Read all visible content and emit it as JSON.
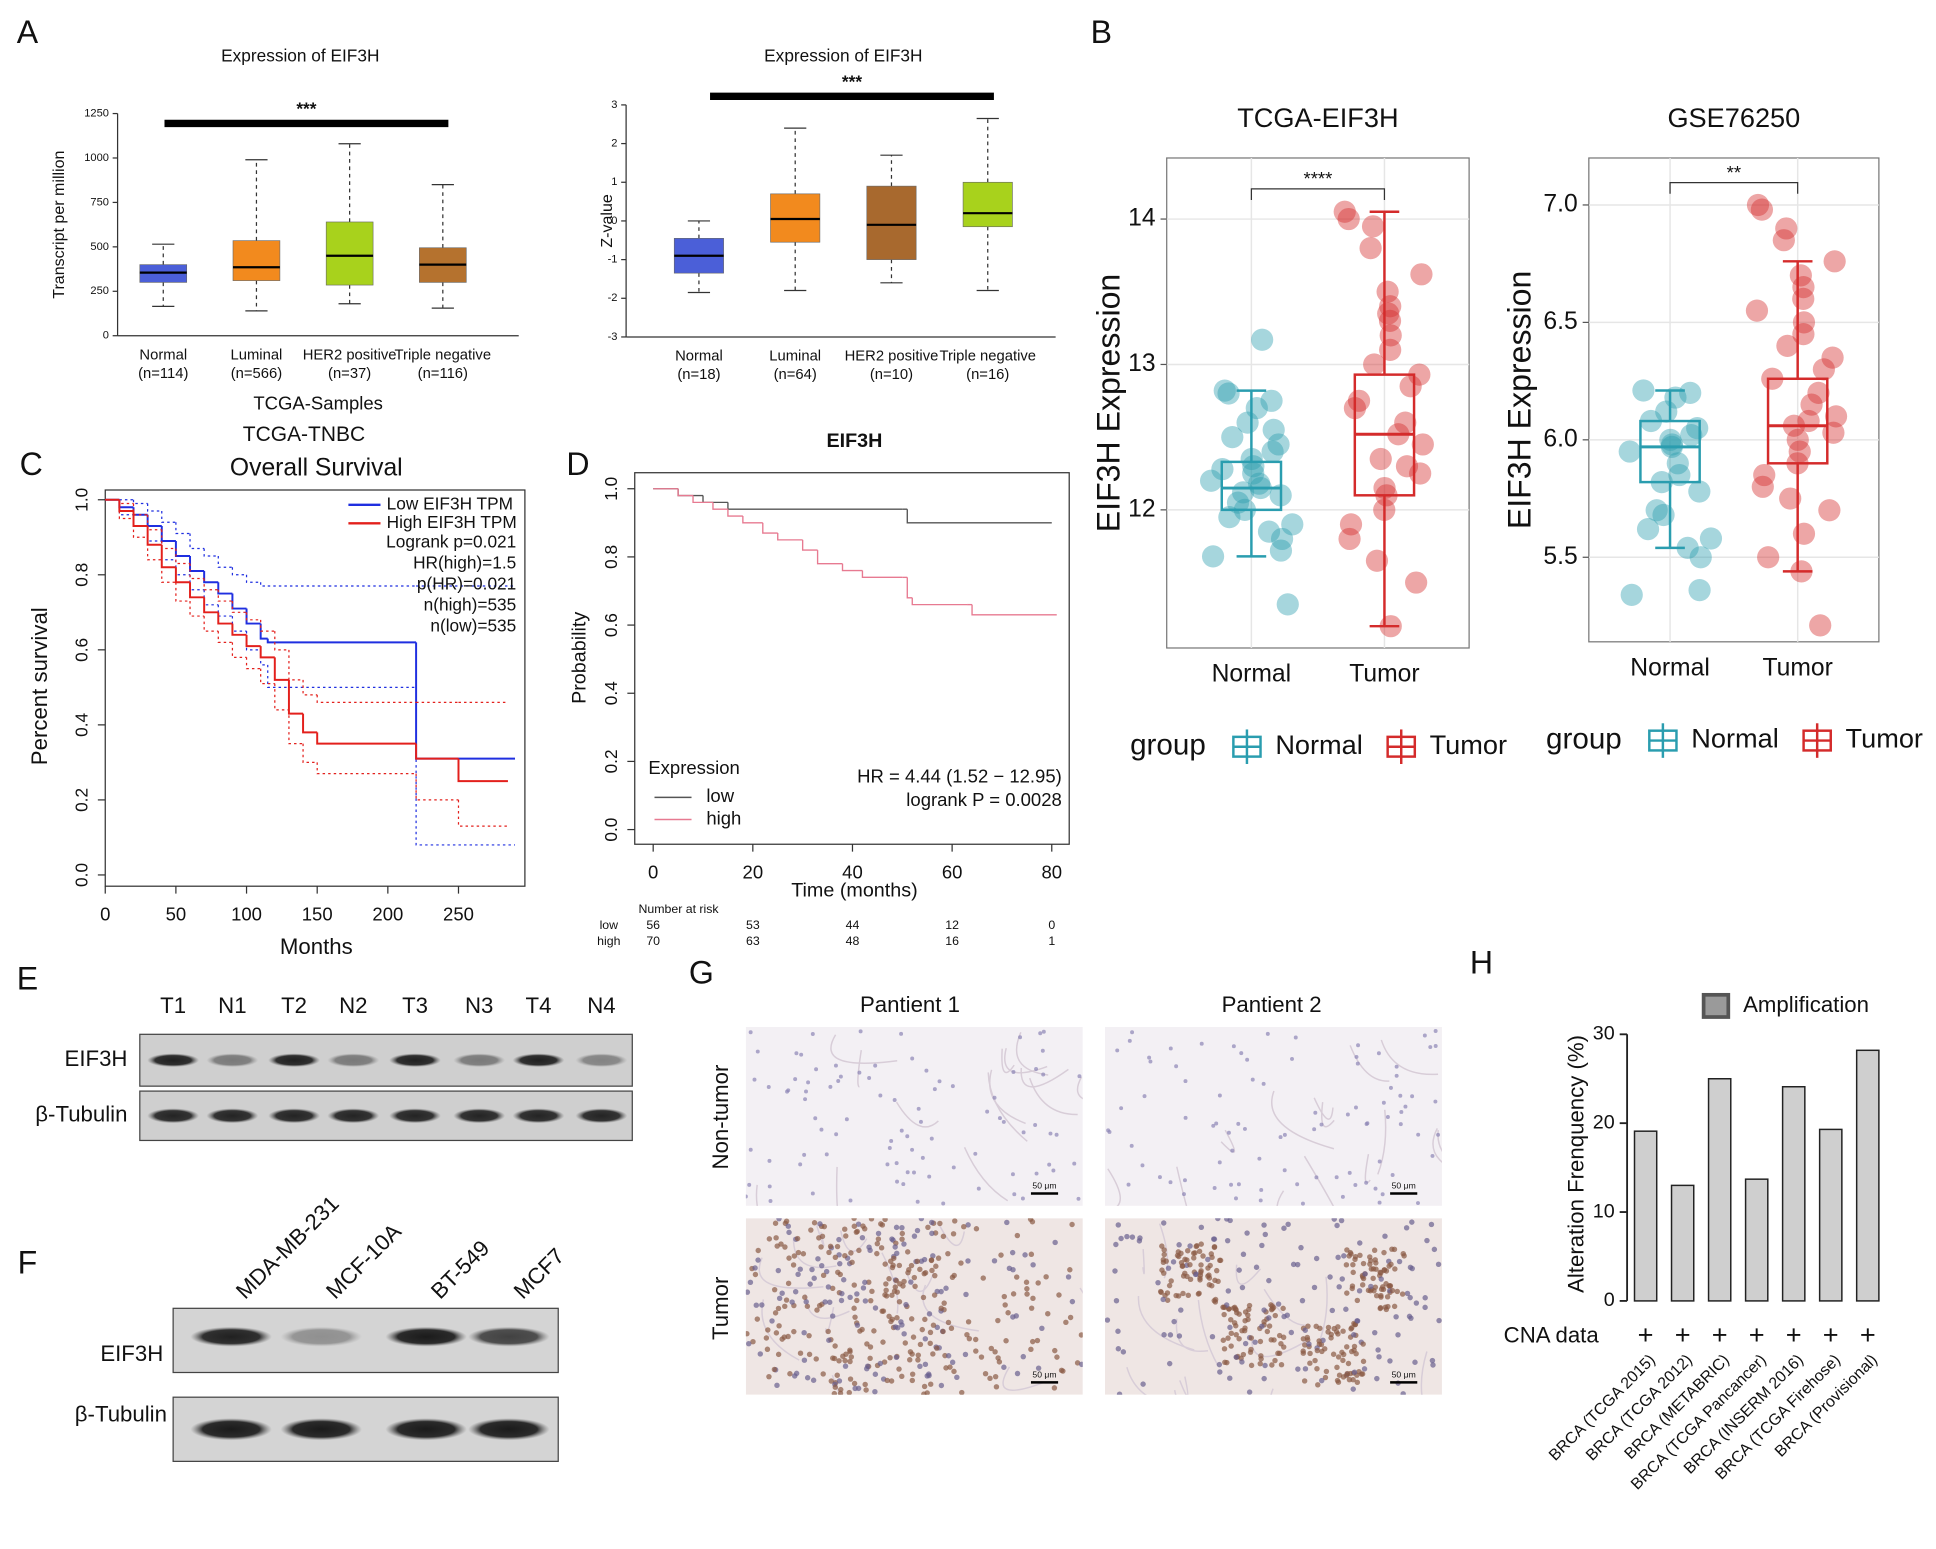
{
  "panel_labels": [
    "A",
    "B",
    "C",
    "D",
    "E",
    "F",
    "G",
    "H"
  ],
  "chart_data": [
    {
      "type": "box",
      "title": "Expression of EIF3H",
      "ylabel": "Transcript per million",
      "xlabel": "TCGA-Samples",
      "categories": [
        "Normal",
        "Luminal",
        "HER2 positive",
        "Triple negative"
      ],
      "n_labels": [
        "(n=114)",
        "(n=566)",
        "(n=37)",
        "(n=116)"
      ],
      "colors": [
        "#4b5fd8",
        "#f28a1e",
        "#a8d21c",
        "#b5722e"
      ],
      "stats": [
        {
          "min": 165,
          "q1": 300,
          "median": 355,
          "q3": 400,
          "max": 515
        },
        {
          "min": 140,
          "q1": 310,
          "median": 385,
          "q3": 535,
          "max": 990
        },
        {
          "min": 180,
          "q1": 285,
          "median": 450,
          "q3": 640,
          "max": 1080
        },
        {
          "min": 155,
          "q1": 300,
          "median": 400,
          "q3": 495,
          "max": 850
        }
      ],
      "significance": "***",
      "ylim": [
        0,
        1250
      ],
      "yticks": [
        0,
        250,
        500,
        750,
        1000,
        1250
      ]
    },
    {
      "type": "box",
      "title": "Expression of EIF3H",
      "ylabel": "Z-value",
      "categories": [
        "Normal",
        "Luminal",
        "HER2 positive",
        "Triple negative"
      ],
      "n_labels": [
        "(n=18)",
        "(n=64)",
        "(n=10)",
        "(n=16)"
      ],
      "colors": [
        "#4b5fd8",
        "#f28a1e",
        "#a8692e",
        "#a8d21c"
      ],
      "stats": [
        {
          "min": -1.85,
          "q1": -1.35,
          "median": -0.9,
          "q3": -0.45,
          "max": 0.0
        },
        {
          "min": -1.8,
          "q1": -0.55,
          "median": 0.05,
          "q3": 0.7,
          "max": 2.4
        },
        {
          "min": -1.6,
          "q1": -1.0,
          "median": -0.1,
          "q3": 0.9,
          "max": 1.7
        },
        {
          "min": -1.8,
          "q1": -0.15,
          "median": 0.2,
          "q3": 1.0,
          "max": 2.65
        }
      ],
      "significance": "***",
      "ylim": [
        -3,
        3
      ],
      "yticks": [
        -3,
        -2,
        -1,
        0,
        1,
        2,
        3
      ]
    },
    {
      "type": "box_jitter",
      "title": "TCGA-EIF3H",
      "ylabel": "EIF3H Expression",
      "categories": [
        "Normal",
        "Tumor"
      ],
      "colors": [
        "#2a9daf",
        "#d42b2b"
      ],
      "stats": [
        {
          "min": 11.68,
          "q1": 12.0,
          "median": 12.15,
          "q3": 12.33,
          "max": 12.82
        },
        {
          "min": 11.2,
          "q1": 12.1,
          "median": 12.52,
          "q3": 12.93,
          "max": 14.05
        }
      ],
      "points": [
        [
          12.82,
          12.75,
          12.7,
          12.6,
          12.5,
          12.45,
          12.4,
          12.35,
          12.3,
          12.25,
          12.2,
          12.18,
          12.15,
          12.12,
          12.1,
          12.05,
          12.0,
          11.95,
          11.9,
          11.85,
          11.8,
          11.72,
          11.68,
          13.17,
          11.35,
          12.8,
          12.55,
          12.28
        ],
        [
          14.05,
          14.0,
          13.95,
          13.8,
          13.62,
          13.5,
          13.4,
          13.3,
          13.2,
          13.1,
          13.0,
          12.93,
          12.85,
          12.75,
          12.6,
          12.52,
          12.45,
          12.35,
          12.25,
          12.15,
          12.1,
          12.0,
          11.9,
          11.8,
          11.65,
          11.5,
          11.2,
          12.7,
          13.35,
          12.3
        ]
      ],
      "significance": "****",
      "legend_title": "group",
      "grid": true,
      "ylim": [
        11.05,
        14.42
      ],
      "yticks": [
        12,
        13,
        14
      ]
    },
    {
      "type": "box_jitter",
      "title": "GSE76250",
      "ylabel": "EIF3H Expression",
      "categories": [
        "Normal",
        "Tumor"
      ],
      "colors": [
        "#2a9daf",
        "#d42b2b"
      ],
      "stats": [
        {
          "min": 5.54,
          "q1": 5.82,
          "median": 5.97,
          "q3": 6.08,
          "max": 6.21
        },
        {
          "min": 5.44,
          "q1": 5.9,
          "median": 6.06,
          "q3": 6.26,
          "max": 6.76
        }
      ],
      "points": [
        [
          6.21,
          6.2,
          6.18,
          6.12,
          6.08,
          6.05,
          6.02,
          6.0,
          5.98,
          5.97,
          5.95,
          5.9,
          5.85,
          5.82,
          5.78,
          5.7,
          5.68,
          5.62,
          5.58,
          5.54,
          5.5,
          5.36,
          5.34
        ],
        [
          7.0,
          6.98,
          6.9,
          6.85,
          6.76,
          6.7,
          6.65,
          6.6,
          6.5,
          6.45,
          6.4,
          6.35,
          6.3,
          6.26,
          6.2,
          6.15,
          6.1,
          6.06,
          6.03,
          6.0,
          5.95,
          5.9,
          5.85,
          5.8,
          5.75,
          5.7,
          5.6,
          5.5,
          5.44,
          5.21,
          6.55,
          6.08
        ]
      ],
      "significance": "**",
      "legend_title": "group",
      "grid": true,
      "ylim": [
        5.14,
        7.2
      ],
      "yticks": [
        5.5,
        {
          "value": 6,
          "label": "6.0"
        },
        6.5,
        {
          "value": 7,
          "label": "7.0"
        }
      ]
    },
    {
      "type": "survival",
      "supertitle": "TCGA-TNBC",
      "title": "Overall Survival",
      "xlabel": "Months",
      "ylabel": "Percent survival",
      "xlim": [
        0,
        297
      ],
      "xticks": [
        0,
        50,
        100,
        150,
        200,
        250
      ],
      "ylim": [
        -0.03,
        1.026
      ],
      "yticks": [
        {
          "value": 0,
          "label": "0.0"
        },
        0.2,
        0.4,
        0.6,
        0.8,
        {
          "value": 1,
          "label": "1.0"
        }
      ],
      "series": [
        {
          "name": "Low EIF3H TPM",
          "color": "#1f2fe0",
          "x": [
            0,
            10,
            20,
            30,
            40,
            50,
            60,
            70,
            80,
            90,
            100,
            110,
            115,
            220,
            290
          ],
          "values": [
            1.0,
            0.98,
            0.96,
            0.93,
            0.89,
            0.85,
            0.81,
            0.78,
            0.75,
            0.71,
            0.67,
            0.63,
            0.62,
            0.31,
            0.31
          ],
          "ci_lower": [
            1.0,
            0.96,
            0.93,
            0.89,
            0.84,
            0.8,
            0.76,
            0.72,
            0.69,
            0.65,
            0.6,
            0.56,
            0.5,
            0.08,
            0.08
          ],
          "ci_upper": [
            1.0,
            1.0,
            0.99,
            0.97,
            0.94,
            0.91,
            0.87,
            0.85,
            0.82,
            0.8,
            0.78,
            0.77,
            0.77,
            0.77,
            0.77
          ]
        },
        {
          "name": "High EIF3H TPM",
          "color": "#e3201c",
          "x": [
            0,
            10,
            20,
            30,
            40,
            50,
            60,
            70,
            80,
            90,
            100,
            110,
            120,
            130,
            140,
            150,
            220,
            250,
            285
          ],
          "values": [
            1.0,
            0.97,
            0.93,
            0.88,
            0.82,
            0.78,
            0.74,
            0.7,
            0.67,
            0.64,
            0.61,
            0.58,
            0.52,
            0.43,
            0.38,
            0.35,
            0.31,
            0.25,
            0.25
          ],
          "ci_lower": [
            1.0,
            0.95,
            0.9,
            0.84,
            0.78,
            0.73,
            0.69,
            0.65,
            0.62,
            0.58,
            0.55,
            0.51,
            0.44,
            0.35,
            0.3,
            0.27,
            0.2,
            0.13,
            0.13
          ],
          "ci_upper": [
            1.0,
            0.99,
            0.96,
            0.92,
            0.87,
            0.83,
            0.79,
            0.76,
            0.73,
            0.7,
            0.68,
            0.65,
            0.6,
            0.52,
            0.48,
            0.46,
            0.46,
            0.46,
            0.46
          ]
        }
      ],
      "annotations": [
        "Logrank p=0.021",
        "HR(high)=1.5",
        "p(HR)=0.021",
        "n(high)=535",
        "n(low)=535"
      ]
    },
    {
      "type": "survival",
      "title": "EIF3H",
      "xlabel": "Time (months)",
      "ylabel": "Probability",
      "legend_title": "Expression",
      "xlim": [
        -3.7,
        83.5
      ],
      "xticks": [
        0,
        20,
        40,
        60,
        80
      ],
      "ylim": [
        -0.043,
        1.047
      ],
      "yticks": [
        {
          "value": 0,
          "label": "0.0"
        },
        0.2,
        0.4,
        0.6,
        0.8,
        {
          "value": 1,
          "label": "1.0"
        }
      ],
      "series": [
        {
          "name": "low",
          "color": "#555555",
          "x": [
            0,
            5,
            10,
            15,
            50,
            51,
            80
          ],
          "values": [
            1.0,
            0.98,
            0.96,
            0.94,
            0.94,
            0.9,
            0.9
          ]
        },
        {
          "name": "high",
          "color": "#e77a91",
          "x": [
            0,
            5,
            8,
            12,
            15,
            18,
            22,
            25,
            30,
            33,
            38,
            42,
            50,
            51,
            52,
            63,
            64,
            81
          ],
          "values": [
            1.0,
            0.98,
            0.96,
            0.94,
            0.92,
            0.9,
            0.87,
            0.85,
            0.82,
            0.78,
            0.76,
            0.74,
            0.74,
            0.68,
            0.66,
            0.66,
            0.63,
            0.63
          ]
        }
      ],
      "annotations": [
        "HR = 4.44 (1.52 − 12.95)",
        "logrank P = 0.0028"
      ],
      "risk_table": {
        "title": "Number at risk",
        "rows": [
          {
            "name": "low",
            "values": [
              56,
              53,
              44,
              12,
              0
            ]
          },
          {
            "name": "high",
            "values": [
              70,
              63,
              48,
              16,
              1
            ]
          }
        ]
      }
    },
    {
      "type": "bar",
      "ylabel": "Alteration Frenquency (%)",
      "categories": [
        "BRCA (TCGA 2015)",
        "BRCA (TCGA 2012)",
        "BRCA (METABRIC)",
        "BRCA (TCGA Pancancer)",
        "BRCA (INSERM 2016)",
        "BRCA (TCGA Firehose)",
        "BRCA (Provisional)"
      ],
      "series": [
        {
          "name": "Amplification",
          "color": "#cfcfcf",
          "values": [
            19.1,
            13,
            25,
            13.7,
            24.1,
            19.3,
            28.2
          ]
        }
      ],
      "row_label": "CNA data",
      "row_mark": "+",
      "ylim": [
        0,
        30
      ],
      "yticks": [
        0,
        10,
        20,
        30
      ]
    }
  ],
  "blot_e": {
    "lanes": [
      "T1",
      "N1",
      "T2",
      "N2",
      "T3",
      "N3",
      "T4",
      "N4"
    ],
    "rows": [
      "EIF3H",
      "β-Tubulin"
    ]
  },
  "blot_f": {
    "lanes": [
      "MDA-MB-231",
      "MCF-10A",
      "BT-549",
      "MCF7"
    ],
    "rows": [
      "EIF3H",
      "β-Tubulin"
    ]
  },
  "ihc": {
    "columns": [
      "Pantient 1",
      "Pantient 2"
    ],
    "rows": [
      "Non-tumor",
      "Tumor"
    ],
    "scale_bar": "50 μm"
  }
}
